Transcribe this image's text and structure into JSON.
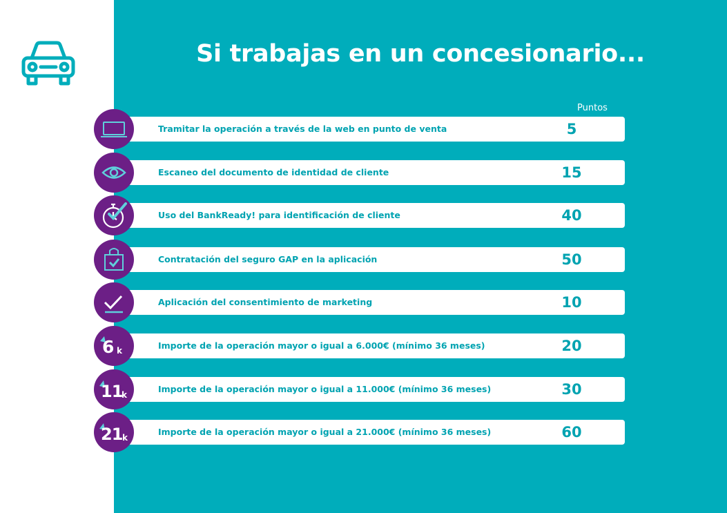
{
  "header": {
    "title": "Si trabajas en un concesionario...",
    "points_header": "Puntos"
  },
  "colors": {
    "teal": "#00adbb",
    "purple": "#6c1f86",
    "row_text": "#00a3b1",
    "white": "#ffffff"
  },
  "rows": [
    {
      "icon": "laptop-icon",
      "label": "Tramitar la operación a través de la web en punto de venta",
      "points": "5"
    },
    {
      "icon": "eye-icon",
      "label": "Escaneo del documento de identidad de cliente",
      "points": "15"
    },
    {
      "icon": "stopwatch-check-icon",
      "label": "Uso del BankReady! para identificación de cliente",
      "points": "40"
    },
    {
      "icon": "shopping-bag-check-icon",
      "label": "Contratación del seguro GAP en la aplicación",
      "points": "50"
    },
    {
      "icon": "checkmark-icon",
      "label": "Aplicación del consentimiento de marketing",
      "points": "10"
    },
    {
      "icon": "6k-icon",
      "badge_number": "6",
      "badge_unit": "k",
      "label": "Importe de la operación mayor o igual a 6.000€ (mínimo 36 meses)",
      "points": "20"
    },
    {
      "icon": "11k-icon",
      "badge_number": "11",
      "badge_unit": "k",
      "label": "Importe de la operación mayor o igual a 11.000€ (mínimo 36 meses)",
      "points": "30"
    },
    {
      "icon": "21k-icon",
      "badge_number": "21",
      "badge_unit": "k",
      "label": "Importe de la operación mayor o igual a 21.000€ (mínimo 36 meses)",
      "points": "60"
    }
  ]
}
